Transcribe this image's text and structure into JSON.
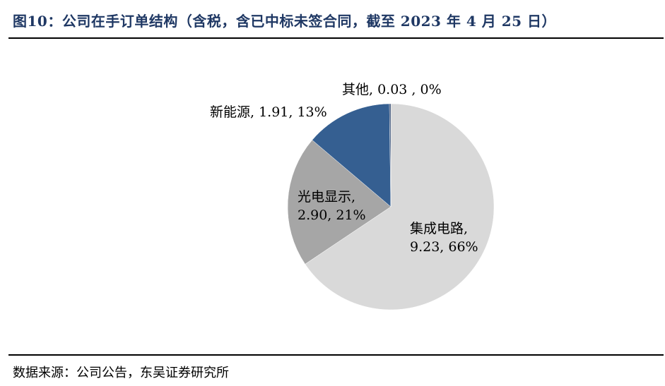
{
  "title": "图10：公司在手订单结构（含税，含已中标未签合同，截至 2023 年 4 月 25 日）",
  "source": "数据来源：公司公告，东吴证券研究所",
  "chart_data": {
    "type": "pie",
    "title": "",
    "slices": [
      {
        "name": "集成电路",
        "value": 9.23,
        "percent": "66%",
        "color": "#d9d9d9",
        "label_lines": [
          "集成电路,",
          "9.23, 66%"
        ]
      },
      {
        "name": "光电显示",
        "value": 2.9,
        "percent": "21%",
        "color": "#a6a6a6",
        "label_lines": [
          "光电显示,",
          "2.90, 21%"
        ]
      },
      {
        "name": "新能源",
        "value": 1.91,
        "percent": "13%",
        "color": "#355f91",
        "label_lines": [
          "新能源, 1.91, 13%"
        ]
      },
      {
        "name": "其他",
        "value": 0.03,
        "percent": "0%",
        "color": "#1f3864",
        "label_lines": [
          "其他, 0.03 , 0%"
        ]
      }
    ],
    "start_angle_deg": 0,
    "direction": "clockwise"
  }
}
